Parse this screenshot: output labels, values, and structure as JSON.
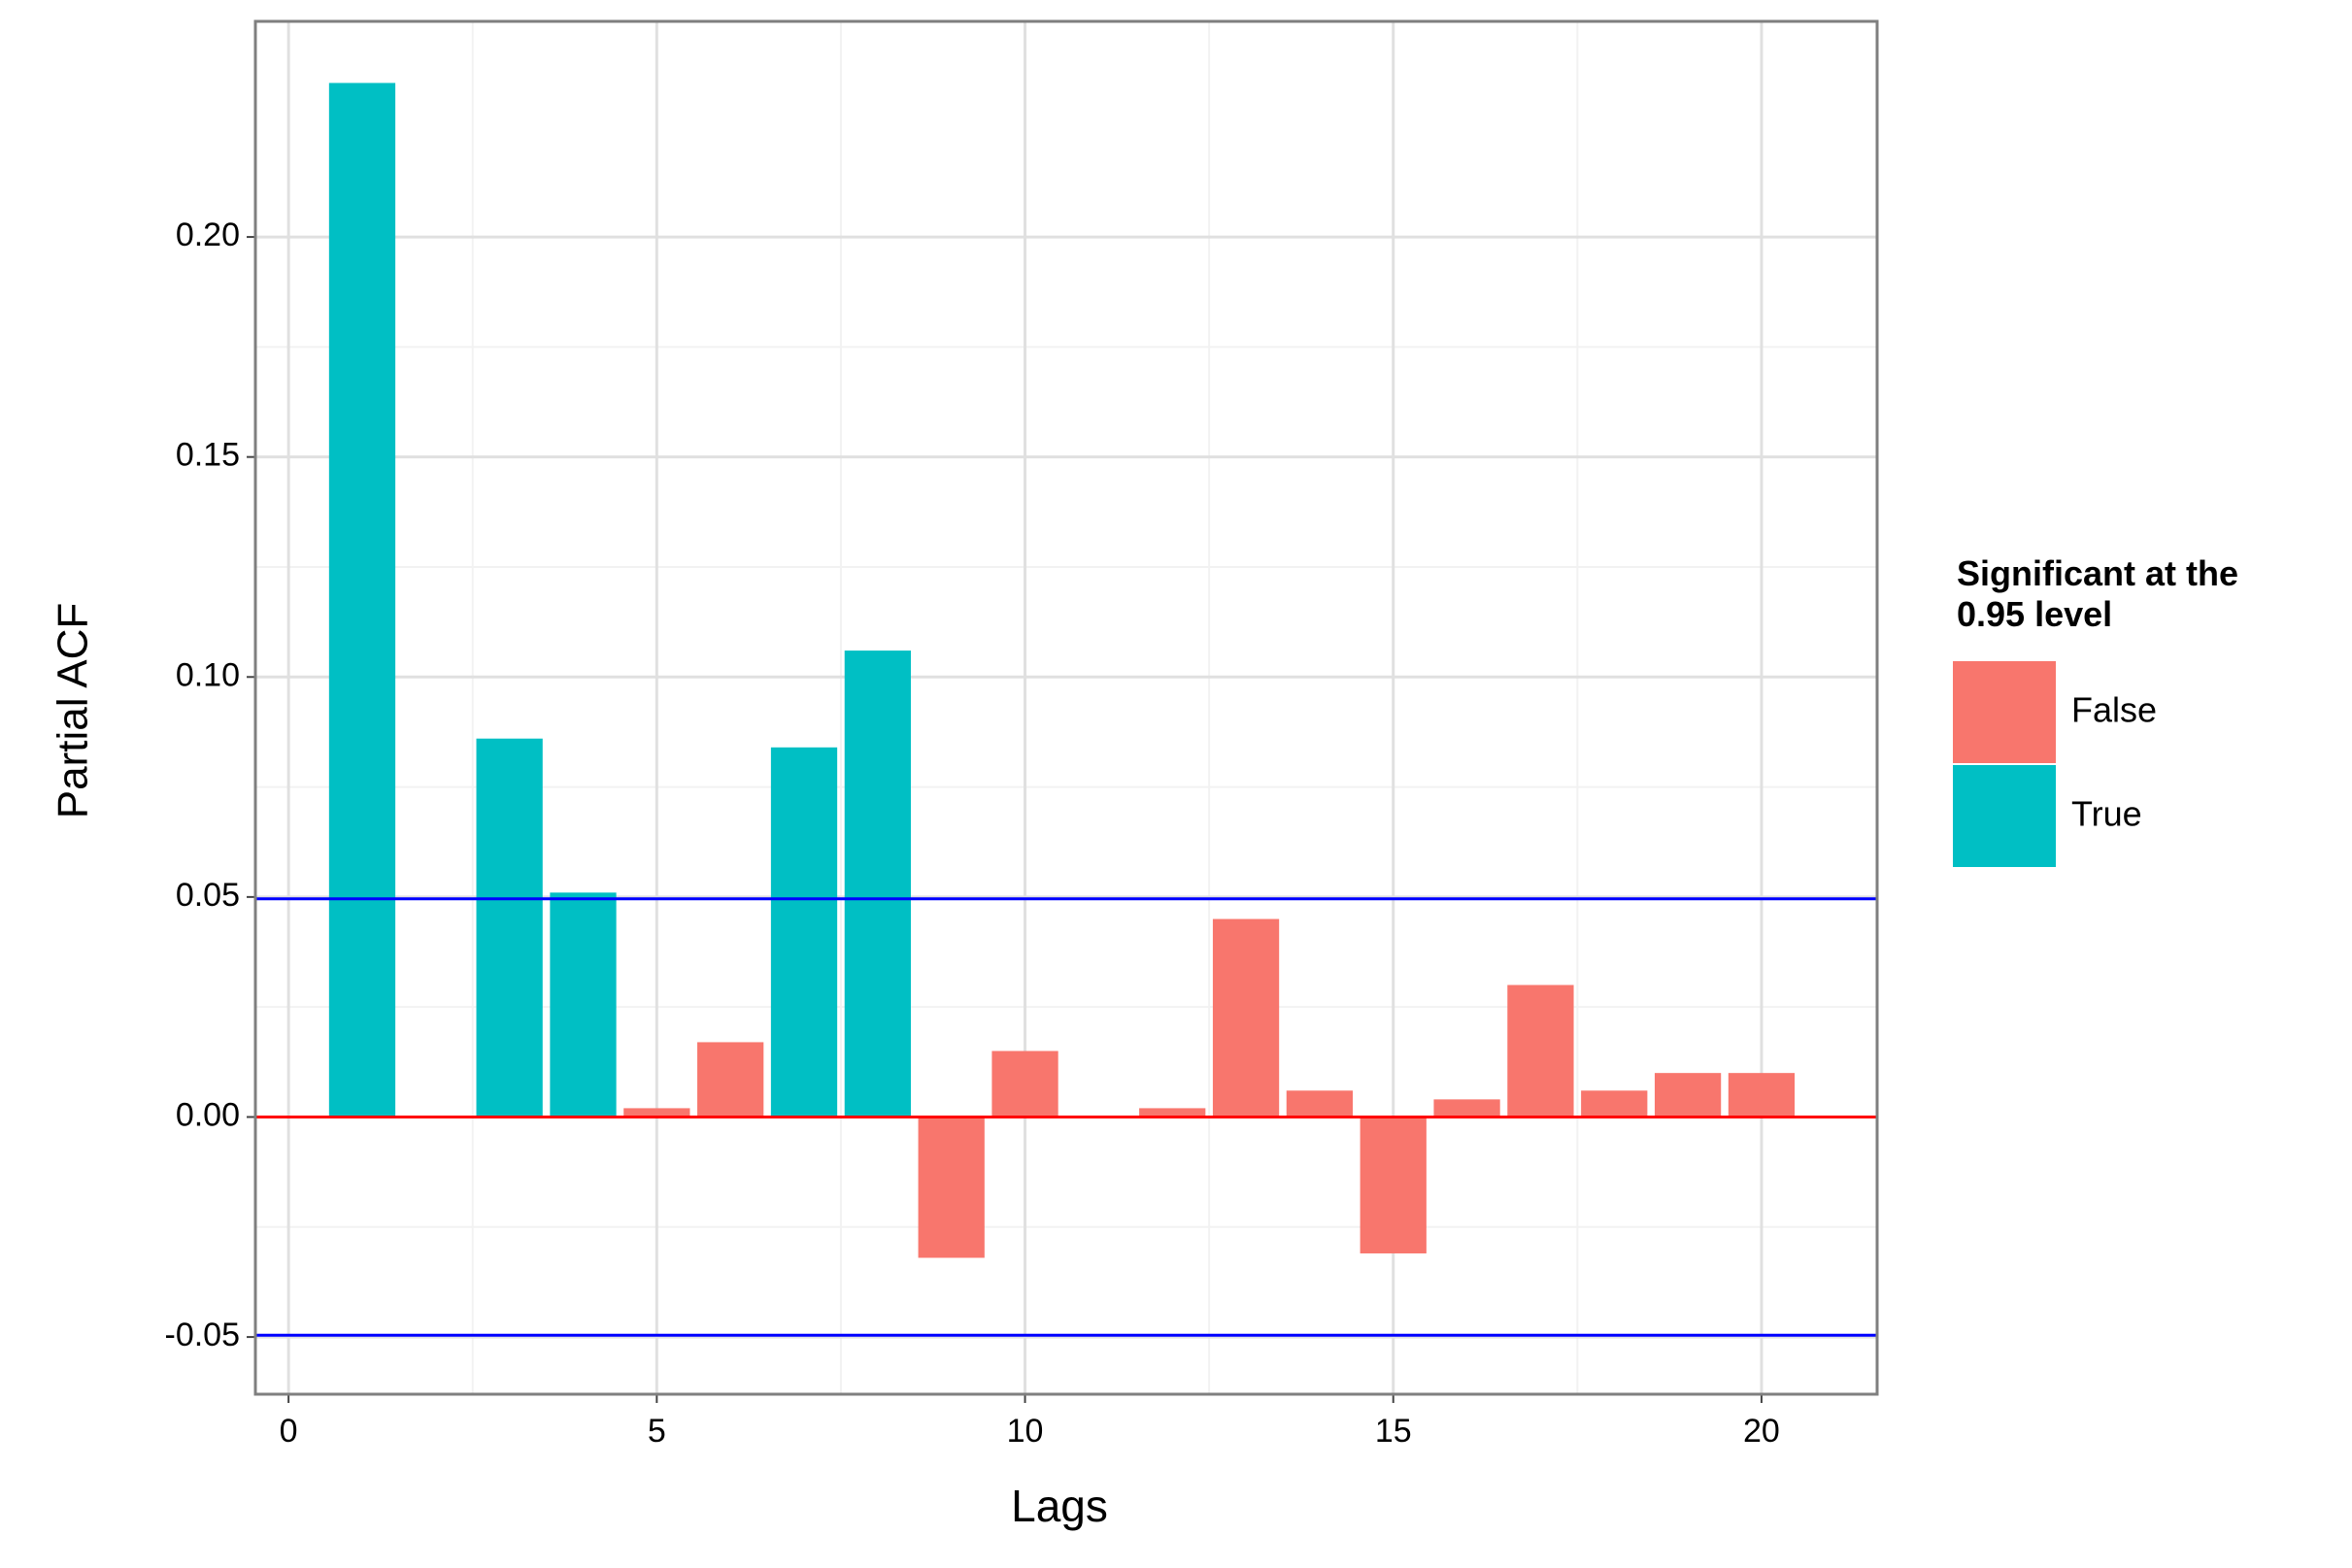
{
  "chart_data": {
    "type": "bar",
    "x_label": "Lags",
    "y_label": "Partial ACF",
    "legend_title": "Significant at the\n0.95 level",
    "legend_position": "right",
    "x": [
      1,
      2,
      3,
      4,
      5,
      6,
      7,
      8,
      9,
      10,
      11,
      12,
      13,
      14,
      15,
      16,
      17,
      18,
      19,
      20
    ],
    "series": [
      {
        "name": "False",
        "color": "#f8766d",
        "values": [
          null,
          null,
          null,
          null,
          0.002,
          0.017,
          null,
          null,
          -0.032,
          0.015,
          null,
          0.002,
          0.045,
          0.006,
          -0.031,
          0.004,
          0.03,
          0.006,
          0.01,
          0.01
        ]
      },
      {
        "name": "True",
        "color": "#00bfc4",
        "values": [
          0.235,
          null,
          0.086,
          0.051,
          null,
          null,
          0.084,
          0.106,
          null,
          null,
          null,
          null,
          null,
          null,
          null,
          null,
          null,
          null,
          null,
          null
        ]
      }
    ],
    "reference_lines": [
      {
        "value": 0,
        "color": "#ff0000"
      },
      {
        "value": 0.0496,
        "color": "#0000ff"
      },
      {
        "value": -0.0496,
        "color": "#0000ff"
      }
    ],
    "xlim": [
      -0.45,
      21.57
    ],
    "ylim": [
      -0.063,
      0.249
    ],
    "xticks": [
      0,
      5,
      10,
      15,
      20
    ],
    "yticks": [
      {
        "value": -0.05,
        "label": "-0.05"
      },
      {
        "value": 0,
        "label": "0.00"
      },
      {
        "value": 0.05,
        "label": "0.05"
      },
      {
        "value": 0.1,
        "label": "0.10"
      },
      {
        "value": 0.15,
        "label": "0.15"
      },
      {
        "value": 0.2,
        "label": "0.20"
      }
    ],
    "grid": true
  }
}
